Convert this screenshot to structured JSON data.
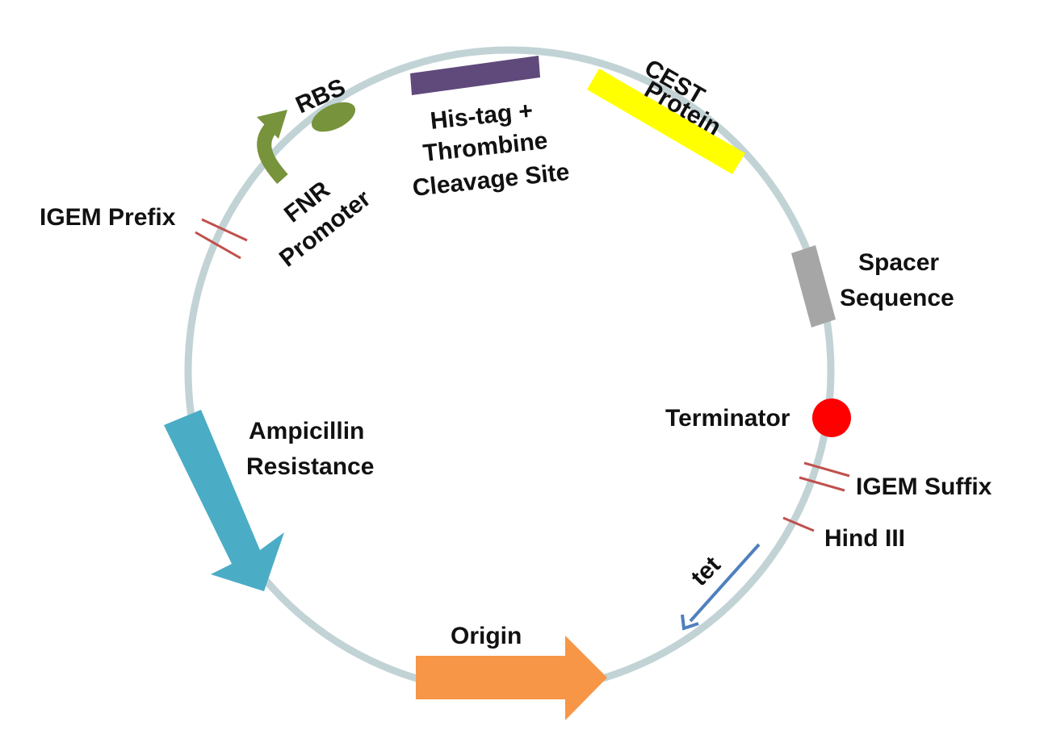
{
  "diagram": {
    "labels": {
      "rbs": "RBS",
      "his_tag": [
        "His-tag +",
        "Thrombine",
        "Cleavage Site"
      ],
      "cest": [
        "CEST",
        "Protein"
      ],
      "fnr": [
        "FNR",
        "Promoter"
      ],
      "igem_prefix": "IGEM Prefix",
      "spacer": [
        "Spacer",
        "Sequence"
      ],
      "terminator": "Terminator",
      "igem_suffix": "IGEM Suffix",
      "hind": "Hind III",
      "tet": "tet",
      "amp": [
        "Ampicillin",
        "Resistance"
      ],
      "origin": "Origin"
    },
    "colors": {
      "backbone": "#c2d3d6",
      "promoter": "#77933c",
      "rbs": "#77933c",
      "his_tag": "#604a7b",
      "cest": "#ffff00",
      "spacer": "#a6a6a6",
      "terminator": "#ff0000",
      "restriction_site": "#c0504d",
      "tet_arrow": "#4f81bd",
      "ampicillin": "#4bacc6",
      "origin": "#f79646"
    }
  }
}
